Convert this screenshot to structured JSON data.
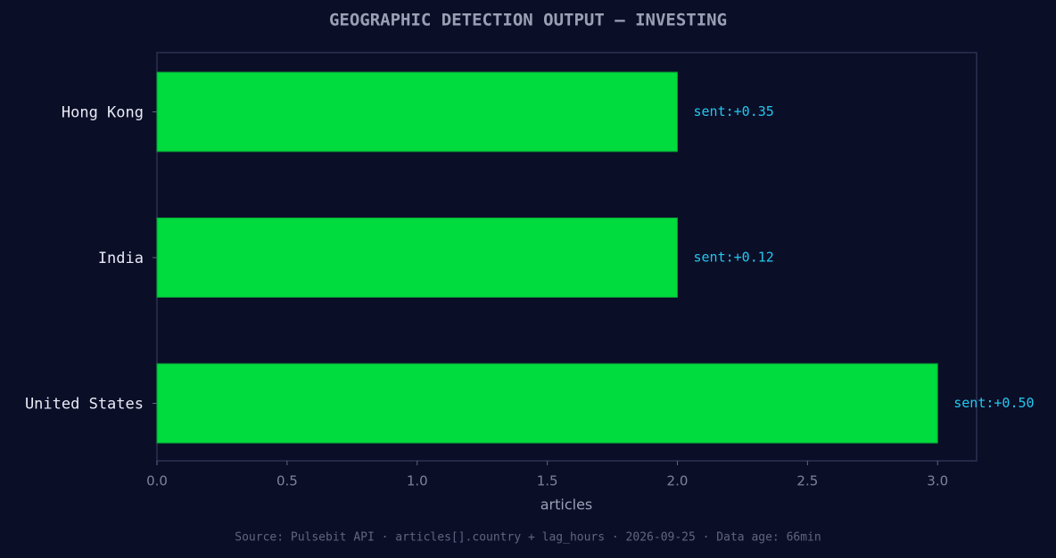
{
  "chart_data": {
    "type": "barh",
    "title": "GEOGRAPHIC DETECTION OUTPUT — INVESTING",
    "categories": [
      "Hong Kong",
      "India",
      "United States"
    ],
    "values": [
      2,
      2,
      3
    ],
    "annotations": [
      "sent:+0.35",
      "sent:+0.12",
      "sent:+0.50"
    ],
    "color": "#00db3e",
    "x_label": "articles",
    "xlim": [
      0,
      3.15
    ],
    "xticks": [
      {
        "value": 0,
        "label": "0.0"
      },
      0.5,
      {
        "value": 1,
        "label": "1.0"
      },
      1.5,
      {
        "value": 2,
        "label": "2.0"
      },
      2.5,
      {
        "value": 3,
        "label": "3.0"
      }
    ],
    "footer": "Source: Pulsebit API · articles[].country + lag_hours · 2026-09-25 · Data age: 66min"
  }
}
